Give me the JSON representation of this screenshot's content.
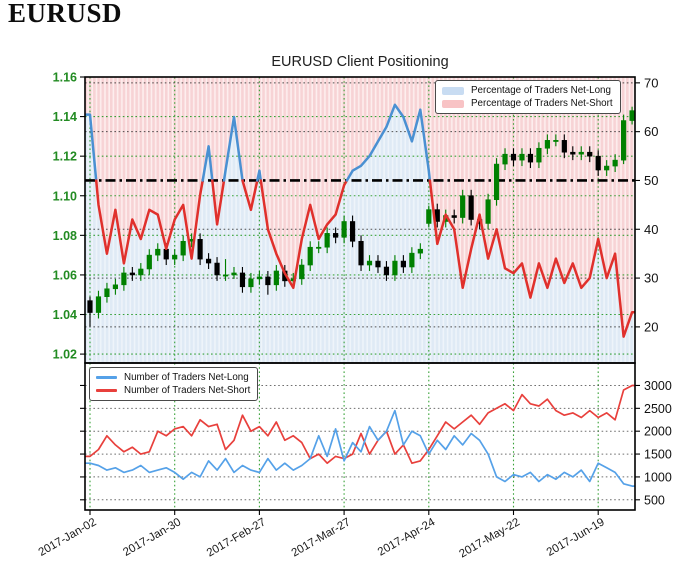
{
  "page": {
    "heading": "EURUSD"
  },
  "chart": {
    "title": "EURUSD Client Positioning",
    "legend_top": {
      "items": [
        {
          "label": "Percentage of Traders Net-Long"
        },
        {
          "label": "Percentage of Traders Net-Short"
        }
      ]
    },
    "legend_bottom": {
      "items": [
        {
          "label": "Number of Traders Net-Long"
        },
        {
          "label": "Number of Traders Net-Short"
        }
      ]
    }
  },
  "chart_data": {
    "type": "mixed",
    "title": "EURUSD Client Positioning",
    "description": "Top panel: EURUSD daily candlesticks (left green price axis 1.02-1.16) overlaid with percentage of traders net-long (blue above 50, red below 50, right axis 20-70, dash-dot reference at 50, pink fill above line, light blue fill below line). Bottom panel: number of traders net-long (blue) and net-short (red), right axis 500-3000.",
    "x": {
      "tick_labels": [
        "2017-Jan-02",
        "2017-Jan-30",
        "2017-Feb-27",
        "2017-Mar-27",
        "2017-Apr-24",
        "2017-May-22",
        "2017-Jun-19"
      ],
      "tick_point_indices": [
        0,
        10,
        20,
        30,
        40,
        50,
        60
      ],
      "n_points": 65,
      "point_spacing": "2 trading days"
    },
    "price_panel": {
      "price_tick_labels": [
        "1.16",
        "1.14",
        "1.12",
        "1.10",
        "1.08",
        "1.06",
        "1.04",
        "1.02"
      ],
      "price_grid": [
        1.14,
        1.12,
        1.1,
        1.08,
        1.06,
        1.04,
        1.02
      ],
      "price_range": [
        1.0155,
        1.16
      ],
      "pct_tick_labels": [
        "70",
        "60",
        "50",
        "40",
        "30",
        "20"
      ],
      "pct_grid": [
        70,
        60,
        40,
        30,
        20
      ],
      "pct_range": [
        12.6,
        71.2
      ],
      "reference_line": 50,
      "candles_ohlc": [
        [
          1.047,
          1.049,
          1.034,
          1.041
        ],
        [
          1.041,
          1.052,
          1.038,
          1.049
        ],
        [
          1.049,
          1.056,
          1.046,
          1.053
        ],
        [
          1.053,
          1.058,
          1.05,
          1.055
        ],
        [
          1.055,
          1.064,
          1.052,
          1.061
        ],
        [
          1.061,
          1.064,
          1.057,
          1.06
        ],
        [
          1.06,
          1.066,
          1.057,
          1.063
        ],
        [
          1.063,
          1.073,
          1.06,
          1.07
        ],
        [
          1.07,
          1.076,
          1.067,
          1.073
        ],
        [
          1.073,
          1.076,
          1.065,
          1.068
        ],
        [
          1.068,
          1.073,
          1.065,
          1.07
        ],
        [
          1.07,
          1.08,
          1.067,
          1.077
        ],
        [
          1.077,
          1.081,
          1.074,
          1.078
        ],
        [
          1.078,
          1.081,
          1.065,
          1.068
        ],
        [
          1.068,
          1.071,
          1.063,
          1.066
        ],
        [
          1.066,
          1.069,
          1.057,
          1.06
        ],
        [
          1.06,
          1.068,
          1.057,
          1.06
        ],
        [
          1.06,
          1.064,
          1.058,
          1.061
        ],
        [
          1.061,
          1.064,
          1.051,
          1.054
        ],
        [
          1.054,
          1.061,
          1.051,
          1.058
        ],
        [
          1.058,
          1.062,
          1.055,
          1.059
        ],
        [
          1.059,
          1.062,
          1.05,
          1.055
        ],
        [
          1.055,
          1.065,
          1.052,
          1.062
        ],
        [
          1.062,
          1.065,
          1.054,
          1.057
        ],
        [
          1.057,
          1.061,
          1.053,
          1.058
        ],
        [
          1.058,
          1.068,
          1.055,
          1.065
        ],
        [
          1.065,
          1.077,
          1.062,
          1.074
        ],
        [
          1.074,
          1.077,
          1.071,
          1.074
        ],
        [
          1.074,
          1.084,
          1.071,
          1.081
        ],
        [
          1.081,
          1.084,
          1.076,
          1.079
        ],
        [
          1.079,
          1.09,
          1.076,
          1.087
        ],
        [
          1.087,
          1.09,
          1.074,
          1.077
        ],
        [
          1.077,
          1.08,
          1.062,
          1.065
        ],
        [
          1.065,
          1.07,
          1.062,
          1.067
        ],
        [
          1.067,
          1.07,
          1.061,
          1.064
        ],
        [
          1.064,
          1.067,
          1.057,
          1.06
        ],
        [
          1.06,
          1.07,
          1.057,
          1.067
        ],
        [
          1.067,
          1.07,
          1.061,
          1.064
        ],
        [
          1.064,
          1.074,
          1.061,
          1.071
        ],
        [
          1.071,
          1.076,
          1.068,
          1.073
        ],
        [
          1.086,
          1.095,
          1.084,
          1.093
        ],
        [
          1.093,
          1.096,
          1.084,
          1.087
        ],
        [
          1.087,
          1.093,
          1.084,
          1.09
        ],
        [
          1.09,
          1.093,
          1.086,
          1.089
        ],
        [
          1.089,
          1.103,
          1.086,
          1.1
        ],
        [
          1.1,
          1.103,
          1.085,
          1.088
        ],
        [
          1.088,
          1.091,
          1.083,
          1.086
        ],
        [
          1.086,
          1.101,
          1.083,
          1.098
        ],
        [
          1.098,
          1.119,
          1.095,
          1.116
        ],
        [
          1.116,
          1.124,
          1.113,
          1.121
        ],
        [
          1.121,
          1.124,
          1.115,
          1.118
        ],
        [
          1.118,
          1.124,
          1.115,
          1.121
        ],
        [
          1.121,
          1.124,
          1.114,
          1.117
        ],
        [
          1.117,
          1.127,
          1.114,
          1.124
        ],
        [
          1.124,
          1.131,
          1.121,
          1.128
        ],
        [
          1.128,
          1.131,
          1.125,
          1.128
        ],
        [
          1.128,
          1.131,
          1.119,
          1.122
        ],
        [
          1.122,
          1.125,
          1.118,
          1.121
        ],
        [
          1.121,
          1.125,
          1.118,
          1.122
        ],
        [
          1.122,
          1.125,
          1.117,
          1.12
        ],
        [
          1.12,
          1.123,
          1.11,
          1.113
        ],
        [
          1.113,
          1.118,
          1.11,
          1.115
        ],
        [
          1.115,
          1.121,
          1.112,
          1.118
        ],
        [
          1.118,
          1.141,
          1.116,
          1.138
        ],
        [
          1.138,
          1.145,
          1.136,
          1.143
        ]
      ],
      "pct_net_long": [
        63.5,
        45,
        35,
        44,
        33,
        42,
        38,
        44,
        43,
        36,
        42,
        45,
        34,
        47,
        57,
        41,
        52,
        63,
        50,
        44,
        52,
        40,
        35,
        31,
        28,
        38,
        45,
        38,
        41,
        43,
        49,
        52,
        53,
        55,
        58,
        61,
        65.5,
        63,
        58,
        64.5,
        52,
        37,
        43,
        40,
        28,
        36,
        43,
        34,
        40,
        32,
        31,
        33,
        26,
        33,
        28,
        34,
        29,
        33,
        28,
        30,
        38,
        30,
        35,
        18,
        23
      ]
    },
    "count_panel": {
      "count_tick_labels": [
        "3000",
        "2500",
        "2000",
        "1500",
        "1000",
        "500"
      ],
      "count_grid": [
        3000,
        2500,
        2000,
        1500,
        1000,
        500
      ],
      "count_range": [
        277,
        3491
      ],
      "net_long": [
        1300,
        1250,
        1150,
        1200,
        1100,
        1150,
        1250,
        1100,
        1150,
        1200,
        1100,
        950,
        1100,
        1000,
        1350,
        1150,
        1400,
        1100,
        1250,
        1150,
        1100,
        1400,
        1150,
        1300,
        1150,
        1250,
        1400,
        1900,
        1450,
        2050,
        1350,
        1750,
        1550,
        2100,
        1800,
        2000,
        2450,
        1700,
        2000,
        1900,
        1500,
        1800,
        1600,
        1900,
        1700,
        1950,
        1800,
        1500,
        1000,
        900,
        1050,
        1000,
        1100,
        900,
        1050,
        950,
        1100,
        1000,
        1150,
        900,
        1300,
        1200,
        1100,
        850,
        800
      ],
      "net_short": [
        1450,
        1600,
        1900,
        1700,
        1550,
        1650,
        1500,
        1550,
        2000,
        1900,
        2050,
        2100,
        1900,
        2250,
        2100,
        2150,
        1600,
        1800,
        2350,
        2000,
        2100,
        1900,
        2200,
        1800,
        1900,
        1750,
        1400,
        1500,
        1300,
        1450,
        1400,
        1500,
        1950,
        1500,
        1800,
        2000,
        1500,
        1700,
        1300,
        1350,
        1600,
        1900,
        2200,
        2050,
        2200,
        2350,
        2150,
        2400,
        2500,
        2600,
        2450,
        2800,
        2600,
        2550,
        2700,
        2450,
        2350,
        2400,
        2300,
        2450,
        2300,
        2400,
        2250,
        2900,
        3000
      ]
    },
    "style": {
      "candle_up": "#008000",
      "candle_down": "#000000",
      "pct_long_line": "#4a90d2",
      "pct_short_line": "#e0302c",
      "fill_long_base": "#eef4fa",
      "fill_long_stripe": "#dfeaf5",
      "fill_short_base": "#fdeeee",
      "fill_short_stripe": "#f7d3d5",
      "legend_long_swatch": "#c8dcf2",
      "legend_short_swatch": "#f8c3c5",
      "count_long_line": "#55a1e8",
      "count_short_line": "#e8403c",
      "grid_green": "#2f9e2f",
      "grid_black": "#333333",
      "price_label_color": "#228B22",
      "axis_label_color": "#111111",
      "reference_line_color": "#000000"
    }
  }
}
